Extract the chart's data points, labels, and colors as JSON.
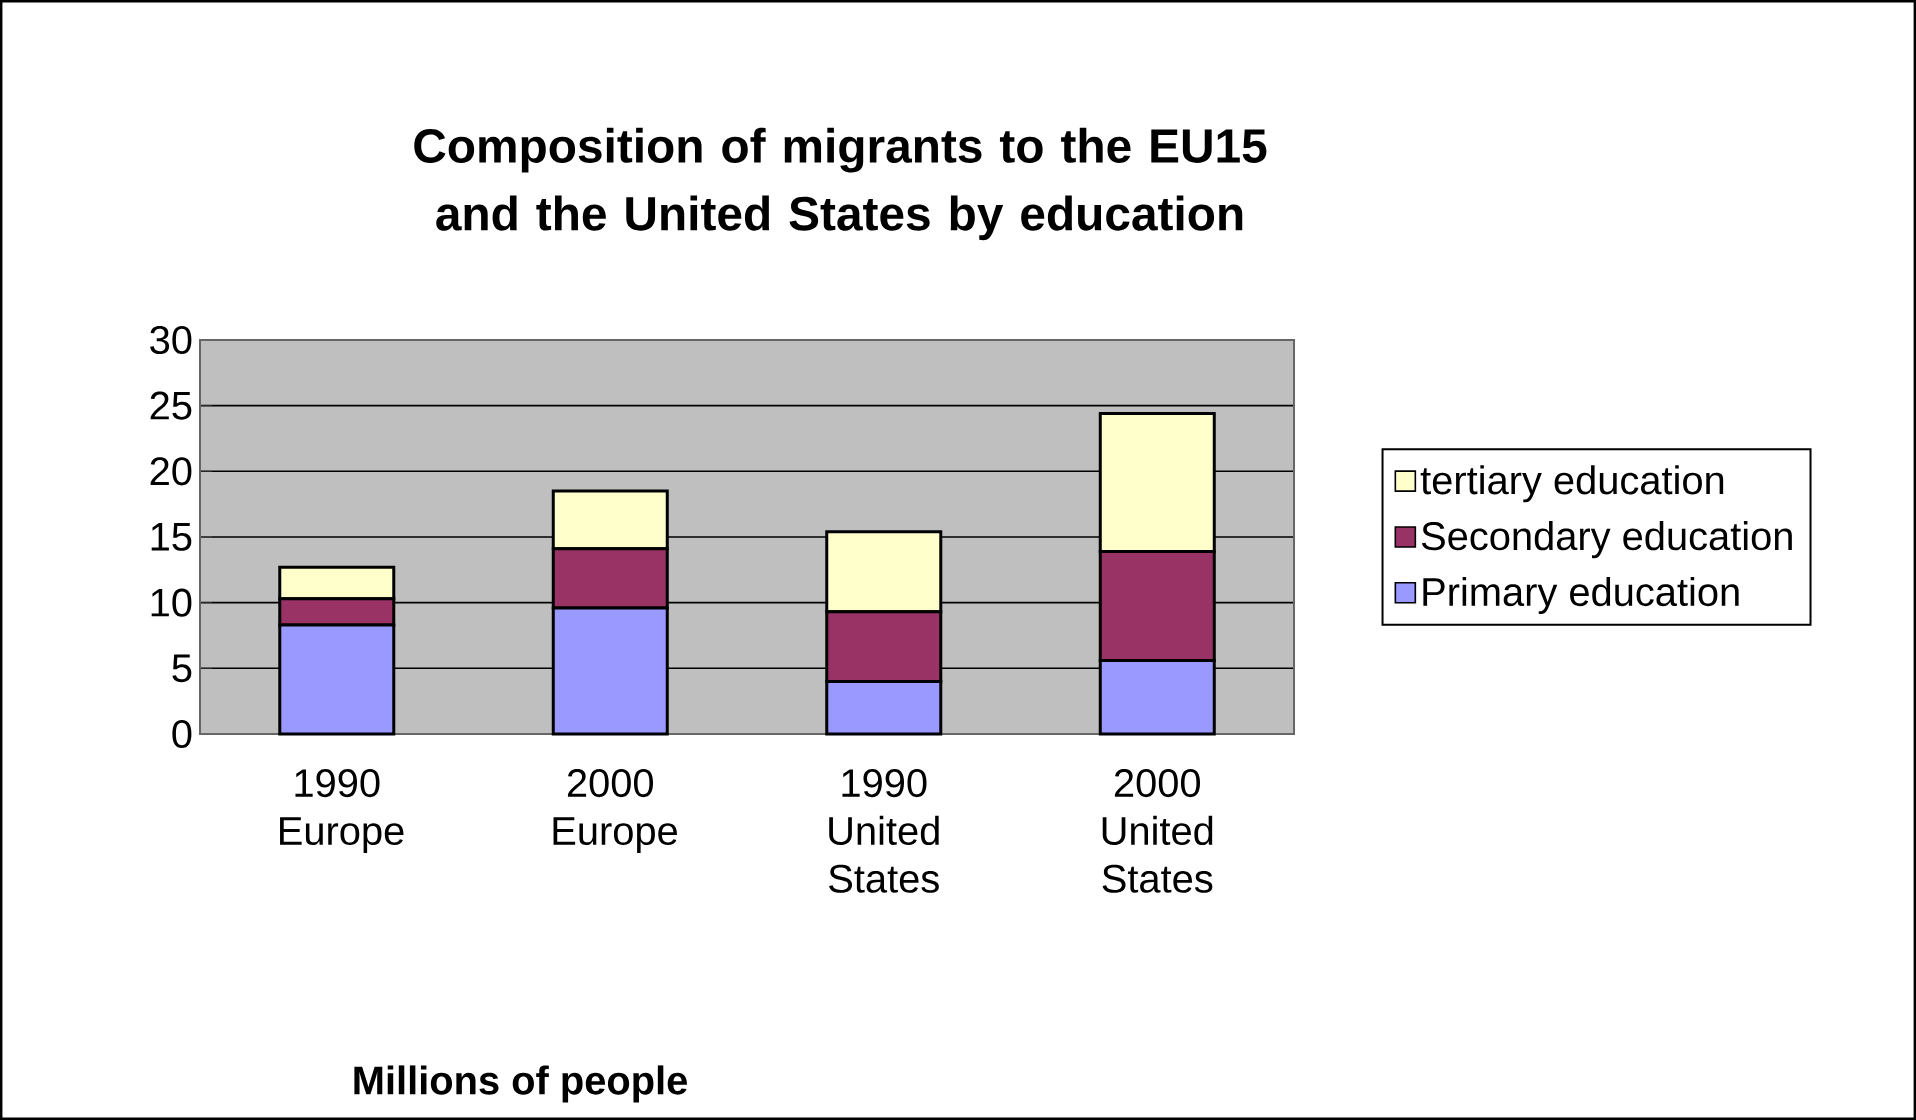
{
  "chart_data": {
    "type": "bar",
    "stacked": true,
    "title": "Composition of migrants to the EU15 and the United States by education",
    "xlabel": "Millions of people",
    "categories": [
      "1990 Europe",
      "2000 Europe",
      "1990 United States",
      "2000 United States"
    ],
    "series": [
      {
        "name": "Primary education",
        "color": "#9999ff",
        "values": [
          8.3,
          9.6,
          4.0,
          5.6
        ]
      },
      {
        "name": "Secondary education",
        "color": "#993366",
        "values": [
          2.0,
          4.5,
          5.3,
          8.3
        ]
      },
      {
        "name": "tertiary education",
        "color": "#ffffcc",
        "values": [
          2.4,
          4.4,
          6.1,
          10.5
        ]
      }
    ],
    "ylim": [
      0,
      30
    ],
    "yticks": [
      0,
      5,
      10,
      15,
      20,
      25,
      30
    ],
    "grid": "y",
    "legend": "right"
  }
}
